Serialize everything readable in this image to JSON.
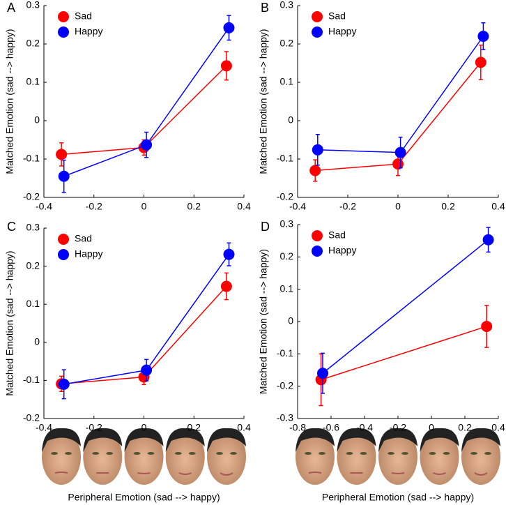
{
  "chart_data": [
    {
      "type": "line",
      "label": "A",
      "ylabel": "Matched Emotion (sad --> happy)",
      "xlim": [
        -0.4,
        0.4
      ],
      "xticks": [
        -0.4,
        -0.2,
        0,
        0.2,
        0.4
      ],
      "ylim": [
        -0.2,
        0.3
      ],
      "yticks": [
        -0.2,
        -0.1,
        0,
        0.1,
        0.2,
        0.3
      ],
      "legend": "upper left",
      "series": [
        {
          "name": "Sad",
          "color": "#ff0000",
          "x": [
            -0.33,
            0,
            0.33
          ],
          "values": [
            -0.088,
            -0.07,
            0.143
          ],
          "errors": [
            0.03,
            0.02,
            0.037
          ]
        },
        {
          "name": "Happy",
          "color": "#0000ff",
          "x": [
            -0.32,
            0.01,
            0.34
          ],
          "values": [
            -0.145,
            -0.063,
            0.242
          ],
          "errors": [
            0.042,
            0.033,
            0.032
          ]
        }
      ]
    },
    {
      "type": "line",
      "label": "B",
      "ylabel": "Matched Emotion (sad --> happy)",
      "xlim": [
        -0.4,
        0.4
      ],
      "xticks": [
        -0.4,
        -0.2,
        0,
        0.2,
        0.4
      ],
      "ylim": [
        -0.2,
        0.3
      ],
      "yticks": [
        -0.2,
        -0.1,
        0,
        0.1,
        0.2,
        0.3
      ],
      "legend": "upper left",
      "series": [
        {
          "name": "Sad",
          "color": "#ff0000",
          "x": [
            -0.33,
            0,
            0.33
          ],
          "values": [
            -0.13,
            -0.113,
            0.152
          ],
          "errors": [
            0.028,
            0.03,
            0.045
          ]
        },
        {
          "name": "Happy",
          "color": "#0000ff",
          "x": [
            -0.32,
            0.01,
            0.34
          ],
          "values": [
            -0.076,
            -0.083,
            0.22
          ],
          "errors": [
            0.04,
            0.04,
            0.035
          ]
        }
      ]
    },
    {
      "type": "line",
      "label": "C",
      "ylabel": "Matched Emotion (sad --> happy)",
      "xlabel": "Peripheral Emotion (sad --> happy)",
      "xlim": [
        -0.4,
        0.4
      ],
      "xticks": [
        -0.4,
        -0.2,
        0,
        0.2,
        0.4
      ],
      "ylim": [
        -0.2,
        0.3
      ],
      "yticks": [
        -0.2,
        -0.1,
        0,
        0.1,
        0.2,
        0.3
      ],
      "legend": "upper left",
      "series": [
        {
          "name": "Sad",
          "color": "#ff0000",
          "x": [
            -0.33,
            0,
            0.33
          ],
          "values": [
            -0.109,
            -0.091,
            0.147
          ],
          "errors": [
            0.02,
            0.02,
            0.035
          ]
        },
        {
          "name": "Happy",
          "color": "#0000ff",
          "x": [
            -0.32,
            0.01,
            0.34
          ],
          "values": [
            -0.11,
            -0.073,
            0.231
          ],
          "errors": [
            0.038,
            0.028,
            0.03
          ]
        }
      ]
    },
    {
      "type": "line",
      "label": "D",
      "ylabel": "Matched Emotion (sad --> happy)",
      "xlabel": "Peripheral Emotion (sad --> happy)",
      "xlim": [
        -0.8,
        0.4
      ],
      "xticks": [
        -0.8,
        -0.6,
        -0.4,
        -0.2,
        0,
        0.2,
        0.4
      ],
      "ylim": [
        -0.3,
        0.3
      ],
      "yticks": [
        -0.3,
        -0.2,
        -0.1,
        0,
        0.1,
        0.2,
        0.3
      ],
      "legend": "upper left",
      "series": [
        {
          "name": "Sad",
          "color": "#ff0000",
          "x": [
            -0.66,
            0.33
          ],
          "values": [
            -0.18,
            -0.015
          ],
          "errors": [
            0.08,
            0.065
          ]
        },
        {
          "name": "Happy",
          "color": "#0000ff",
          "x": [
            -0.65,
            0.34
          ],
          "values": [
            -0.16,
            0.253
          ],
          "errors": [
            0.062,
            0.038
          ]
        }
      ]
    }
  ]
}
